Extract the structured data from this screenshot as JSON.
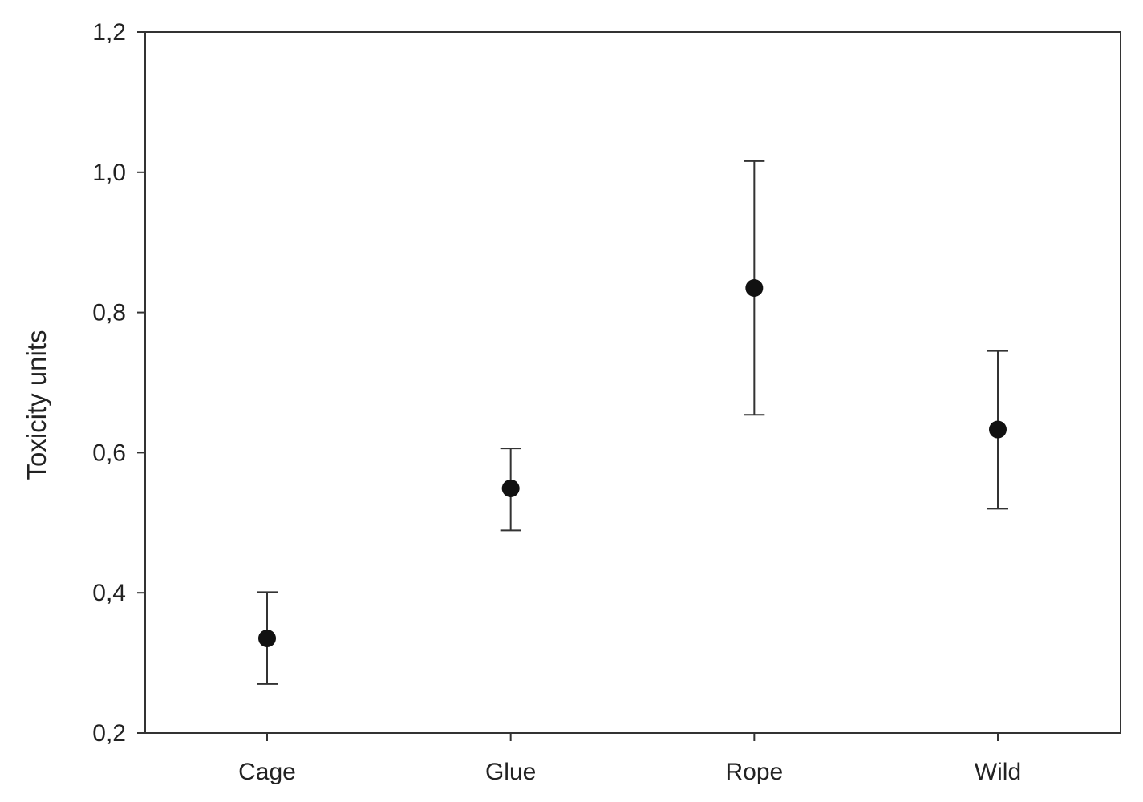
{
  "chart_data": {
    "type": "scatter",
    "title": "",
    "xlabel": "",
    "ylabel": "Toxicity units",
    "categories": [
      "Cage",
      "Glue",
      "Rope",
      "Wild"
    ],
    "values": [
      0.335,
      0.549,
      0.835,
      0.633
    ],
    "error_upper": [
      0.401,
      0.606,
      1.016,
      0.745
    ],
    "error_lower": [
      0.27,
      0.489,
      0.654,
      0.52
    ],
    "ylim": [
      0.2,
      1.2
    ],
    "yticks": [
      0.2,
      0.4,
      0.6,
      0.8,
      1.0,
      1.2
    ],
    "ytick_labels": [
      "0,2",
      "0,4",
      "0,6",
      "0,8",
      "1,0",
      "1,2"
    ],
    "grid": false,
    "legend": "none",
    "marker_color": "#111111",
    "axis_color": "#333333"
  }
}
